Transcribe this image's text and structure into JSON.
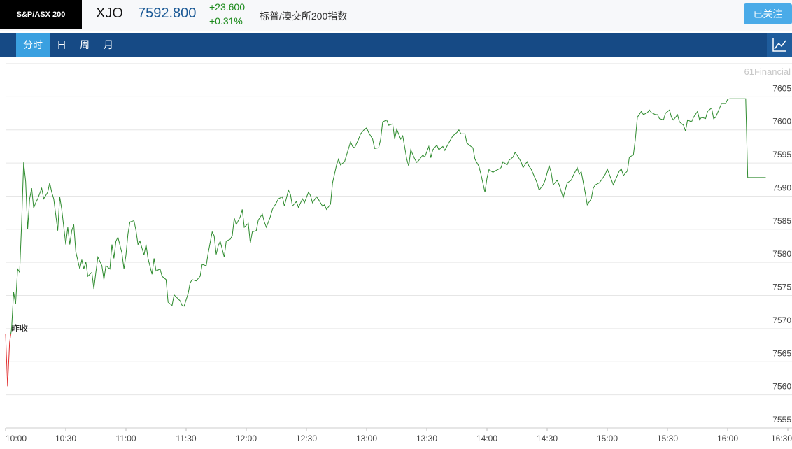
{
  "header": {
    "logo": "S&P/ASX 200",
    "symbol": "XJO",
    "price": "7592.800",
    "change": "+23.600",
    "change_pct": "+0.31%",
    "name": "标普/澳交所200指数",
    "follow_button": "已关注"
  },
  "tabs": [
    "分时",
    "日",
    "周",
    "月"
  ],
  "chart_data": {
    "type": "line",
    "watermark": "61Financial",
    "x": [
      "10:00",
      "10:01",
      "10:02",
      "10:03",
      "10:04",
      "10:05",
      "10:06",
      "10:07",
      "10:08",
      "10:09",
      "10:10",
      "10:11",
      "10:12",
      "10:13",
      "10:14",
      "10:15",
      "10:16",
      "10:18",
      "10:19",
      "10:21",
      "10:22",
      "10:23",
      "10:24",
      "10:26",
      "10:27",
      "10:28",
      "10:30",
      "10:31",
      "10:32",
      "10:33",
      "10:34",
      "10:35",
      "10:37",
      "10:38",
      "10:39",
      "10:40",
      "10:41",
      "10:43",
      "10:44",
      "10:45",
      "10:46",
      "10:48",
      "10:49",
      "10:50",
      "10:52",
      "10:53",
      "10:54",
      "10:55",
      "10:56",
      "10:58",
      "10:59",
      "11:00",
      "11:01",
      "11:02",
      "11:04",
      "11:05",
      "11:06",
      "11:07",
      "11:09",
      "11:10",
      "11:11",
      "11:13",
      "11:14",
      "11:15",
      "11:17",
      "11:18",
      "11:20",
      "11:21",
      "11:23",
      "11:24",
      "11:25",
      "11:27",
      "11:28",
      "11:29",
      "11:31",
      "11:32",
      "11:33",
      "11:35",
      "11:37",
      "11:38",
      "11:40",
      "11:41",
      "11:43",
      "11:44",
      "11:45",
      "11:46",
      "11:47",
      "11:49",
      "11:50",
      "11:52",
      "11:53",
      "11:54",
      "11:55",
      "11:57",
      "11:58",
      "11:59",
      "12:01",
      "12:02",
      "12:03",
      "12:05",
      "12:06",
      "12:08",
      "12:09",
      "12:10",
      "12:12",
      "12:13",
      "12:15",
      "12:16",
      "12:18",
      "12:19",
      "12:21",
      "12:22",
      "12:23",
      "12:25",
      "12:26",
      "12:28",
      "12:29",
      "12:31",
      "12:32",
      "12:33",
      "12:35",
      "12:36",
      "12:38",
      "12:39",
      "12:40",
      "12:42",
      "12:43",
      "12:45",
      "12:46",
      "12:47",
      "12:49",
      "12:50",
      "12:52",
      "12:53",
      "12:54",
      "12:56",
      "12:57",
      "12:59",
      "13:00",
      "13:01",
      "13:03",
      "13:04",
      "13:06",
      "13:07",
      "13:08",
      "13:10",
      "13:11",
      "13:13",
      "13:14",
      "13:15",
      "13:17",
      "13:18",
      "13:20",
      "13:21",
      "13:22",
      "13:24",
      "13:25",
      "13:26",
      "13:28",
      "13:29",
      "13:31",
      "13:32",
      "13:33",
      "13:35",
      "13:36",
      "13:38",
      "13:39",
      "13:40",
      "13:42",
      "13:43",
      "13:45",
      "13:46",
      "13:47",
      "13:49",
      "13:50",
      "13:52",
      "13:53",
      "13:54",
      "13:56",
      "13:57",
      "13:59",
      "14:00",
      "14:01",
      "14:03",
      "14:04",
      "14:06",
      "14:07",
      "14:08",
      "14:10",
      "14:11",
      "14:13",
      "14:14",
      "14:15",
      "14:17",
      "14:18",
      "14:20",
      "14:21",
      "14:22",
      "14:24",
      "14:25",
      "14:26",
      "14:28",
      "14:29",
      "14:31",
      "14:32",
      "14:33",
      "14:35",
      "14:36",
      "14:38",
      "14:39",
      "14:40",
      "14:42",
      "14:43",
      "14:45",
      "14:46",
      "14:47",
      "14:49",
      "14:50",
      "14:52",
      "14:53",
      "14:54",
      "14:56",
      "14:57",
      "14:59",
      "15:00",
      "15:01",
      "15:03",
      "15:04",
      "15:06",
      "15:07",
      "15:08",
      "15:10",
      "15:11",
      "15:13",
      "15:14",
      "15:15",
      "15:17",
      "15:18",
      "15:20",
      "15:21",
      "15:22",
      "15:24",
      "15:25",
      "15:26",
      "15:28",
      "15:29",
      "15:31",
      "15:32",
      "15:33",
      "15:35",
      "15:36",
      "15:38",
      "15:39",
      "15:40",
      "15:42",
      "15:43",
      "15:45",
      "15:46",
      "15:47",
      "15:49",
      "15:50",
      "15:52",
      "15:53",
      "15:54",
      "15:56",
      "15:57",
      "15:59",
      "16:00",
      "16:01",
      "16:09",
      "16:10",
      "16:19"
    ],
    "series": [
      {
        "color": "#2e8b2e",
        "down_color": "#e03030",
        "values": [
          7569.2,
          7561.3,
          7567.9,
          7570.0,
          7575.5,
          7573.7,
          7579.0,
          7578.5,
          7585.9,
          7595.1,
          7592.2,
          7585.0,
          7589.6,
          7591.2,
          7588.2,
          7589.0,
          7589.6,
          7591.2,
          7589.6,
          7590.6,
          7592.0,
          7590.6,
          7589.6,
          7584.8,
          7589.9,
          7588.0,
          7582.7,
          7585.3,
          7582.7,
          7584.8,
          7585.7,
          7581.6,
          7579.0,
          7580.4,
          7579.0,
          7580.1,
          7577.9,
          7578.5,
          7576.0,
          7578.5,
          7580.8,
          7579.5,
          7577.4,
          7579.5,
          7579.0,
          7582.7,
          7580.6,
          7583.2,
          7583.8,
          7581.4,
          7579.0,
          7581.1,
          7584.3,
          7586.1,
          7586.3,
          7584.8,
          7582.7,
          7583.2,
          7581.1,
          7582.7,
          7580.6,
          7578.2,
          7580.6,
          7578.7,
          7579.0,
          7577.9,
          7577.4,
          7574.0,
          7573.5,
          7575.1,
          7574.8,
          7574.2,
          7573.5,
          7573.4,
          7575.3,
          7576.9,
          7577.4,
          7577.2,
          7577.9,
          7579.7,
          7579.5,
          7581.4,
          7584.6,
          7584.0,
          7581.2,
          7582.5,
          7583.2,
          7580.8,
          7583.2,
          7583.5,
          7584.0,
          7586.7,
          7585.7,
          7586.9,
          7588.0,
          7585.3,
          7585.9,
          7582.9,
          7584.6,
          7584.8,
          7586.4,
          7587.3,
          7586.1,
          7585.3,
          7586.9,
          7588.0,
          7589.0,
          7589.6,
          7589.9,
          7588.5,
          7590.9,
          7590.3,
          7588.5,
          7589.2,
          7588.3,
          7589.6,
          7589.0,
          7590.6,
          7590.1,
          7589.0,
          7589.9,
          7589.5,
          7588.5,
          7588.7,
          7588.0,
          7588.8,
          7592.0,
          7594.7,
          7595.6,
          7594.7,
          7595.2,
          7596.2,
          7598.2,
          7597.5,
          7597.3,
          7598.6,
          7599.4,
          7600.1,
          7600.3,
          7599.6,
          7598.6,
          7597.2,
          7597.3,
          7598.6,
          7601.2,
          7601.5,
          7600.7,
          7600.9,
          7598.6,
          7600.1,
          7598.6,
          7599.1,
          7595.6,
          7594.5,
          7597.0,
          7595.6,
          7595.1,
          7595.4,
          7596.2,
          7595.9,
          7597.5,
          7595.8,
          7597.0,
          7597.7,
          7597.0,
          7597.5,
          7596.9,
          7597.5,
          7598.6,
          7599.1,
          7599.6,
          7600.0,
          7599.4,
          7599.4,
          7598.0,
          7597.5,
          7597.3,
          7595.6,
          7594.5,
          7593.3,
          7590.6,
          7592.7,
          7594.0,
          7593.6,
          7593.8,
          7594.1,
          7594.3,
          7595.2,
          7594.7,
          7595.4,
          7595.9,
          7596.6,
          7596.2,
          7595.2,
          7594.3,
          7595.2,
          7594.5,
          7594.1,
          7592.7,
          7592.0,
          7590.9,
          7591.7,
          7592.4,
          7594.6,
          7593.6,
          7591.7,
          7592.4,
          7591.7,
          7589.8,
          7590.9,
          7592.0,
          7592.4,
          7593.1,
          7594.3,
          7593.3,
          7593.7,
          7590.5,
          7588.7,
          7589.6,
          7591.2,
          7591.7,
          7592.0,
          7592.4,
          7593.3,
          7594.1,
          7593.3,
          7591.7,
          7592.4,
          7593.8,
          7594.1,
          7593.1,
          7593.8,
          7595.9,
          7596.2,
          7598.6,
          7601.9,
          7602.8,
          7602.3,
          7602.6,
          7603.0,
          7602.6,
          7602.3,
          7602.3,
          7601.7,
          7601.5,
          7602.5,
          7603.0,
          7601.9,
          7601.5,
          7602.3,
          7601.2,
          7600.7,
          7599.8,
          7601.5,
          7601.2,
          7601.9,
          7602.8,
          7601.5,
          7601.9,
          7601.7,
          7602.8,
          7603.3,
          7601.7,
          7601.9,
          7603.3,
          7604.0,
          7604.0,
          7604.6,
          7604.7,
          7604.7,
          7592.8,
          7592.8
        ]
      }
    ],
    "baseline": {
      "label": "昨收",
      "value": 7569.2,
      "color": "#555555"
    },
    "xlim": [
      "10:00",
      "16:30"
    ],
    "xticks": [
      "10:00",
      "10:30",
      "11:00",
      "11:30",
      "12:00",
      "12:30",
      "13:00",
      "13:30",
      "14:00",
      "14:30",
      "15:00",
      "15:30",
      "16:00",
      "16:30"
    ],
    "ylim": [
      7555,
      7610
    ],
    "yticks": [
      7555,
      7560,
      7565,
      7570,
      7575,
      7580,
      7585,
      7590,
      7595,
      7600,
      7605
    ],
    "grid": true
  }
}
